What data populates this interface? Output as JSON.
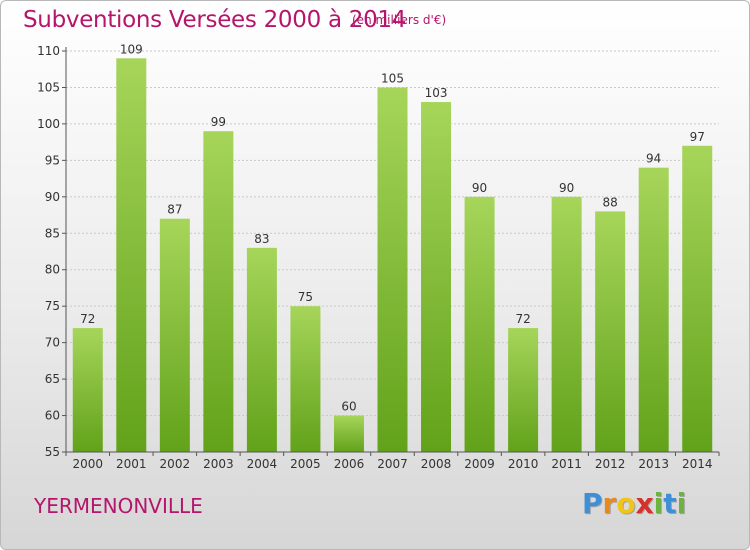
{
  "header": {
    "title": "Subventions Versées 2000 à 2014",
    "unit": "(en milliers d'€)"
  },
  "footer": {
    "commune": "YERMENONVILLE",
    "logo_letters": [
      "P",
      "r",
      "o",
      "x",
      "i",
      "t",
      "i"
    ],
    "logo_colors": [
      "#3f8fd6",
      "#e8891f",
      "#f0c419",
      "#d6302b",
      "#6cb33f",
      "#3f8fd6",
      "#6cb33f"
    ]
  },
  "colors": {
    "bar_top": "#a6d55a",
    "bar_bottom": "#62a21a",
    "title": "#b5156b"
  },
  "chart_data": {
    "type": "bar",
    "title": "Subventions Versées 2000 à 2014",
    "xlabel": "",
    "ylabel": "",
    "categories": [
      "2000",
      "2001",
      "2002",
      "2003",
      "2004",
      "2005",
      "2006",
      "2007",
      "2008",
      "2009",
      "2010",
      "2011",
      "2012",
      "2013",
      "2014"
    ],
    "values": [
      72,
      109,
      87,
      99,
      83,
      75,
      60,
      105,
      103,
      90,
      72,
      90,
      88,
      94,
      97
    ],
    "ylim": [
      55,
      110
    ],
    "yticks": [
      "55",
      "60",
      "65",
      "70",
      "75",
      "80",
      "85",
      "90",
      "95",
      "100",
      "105",
      "110"
    ],
    "grid": true,
    "legend": "none"
  }
}
